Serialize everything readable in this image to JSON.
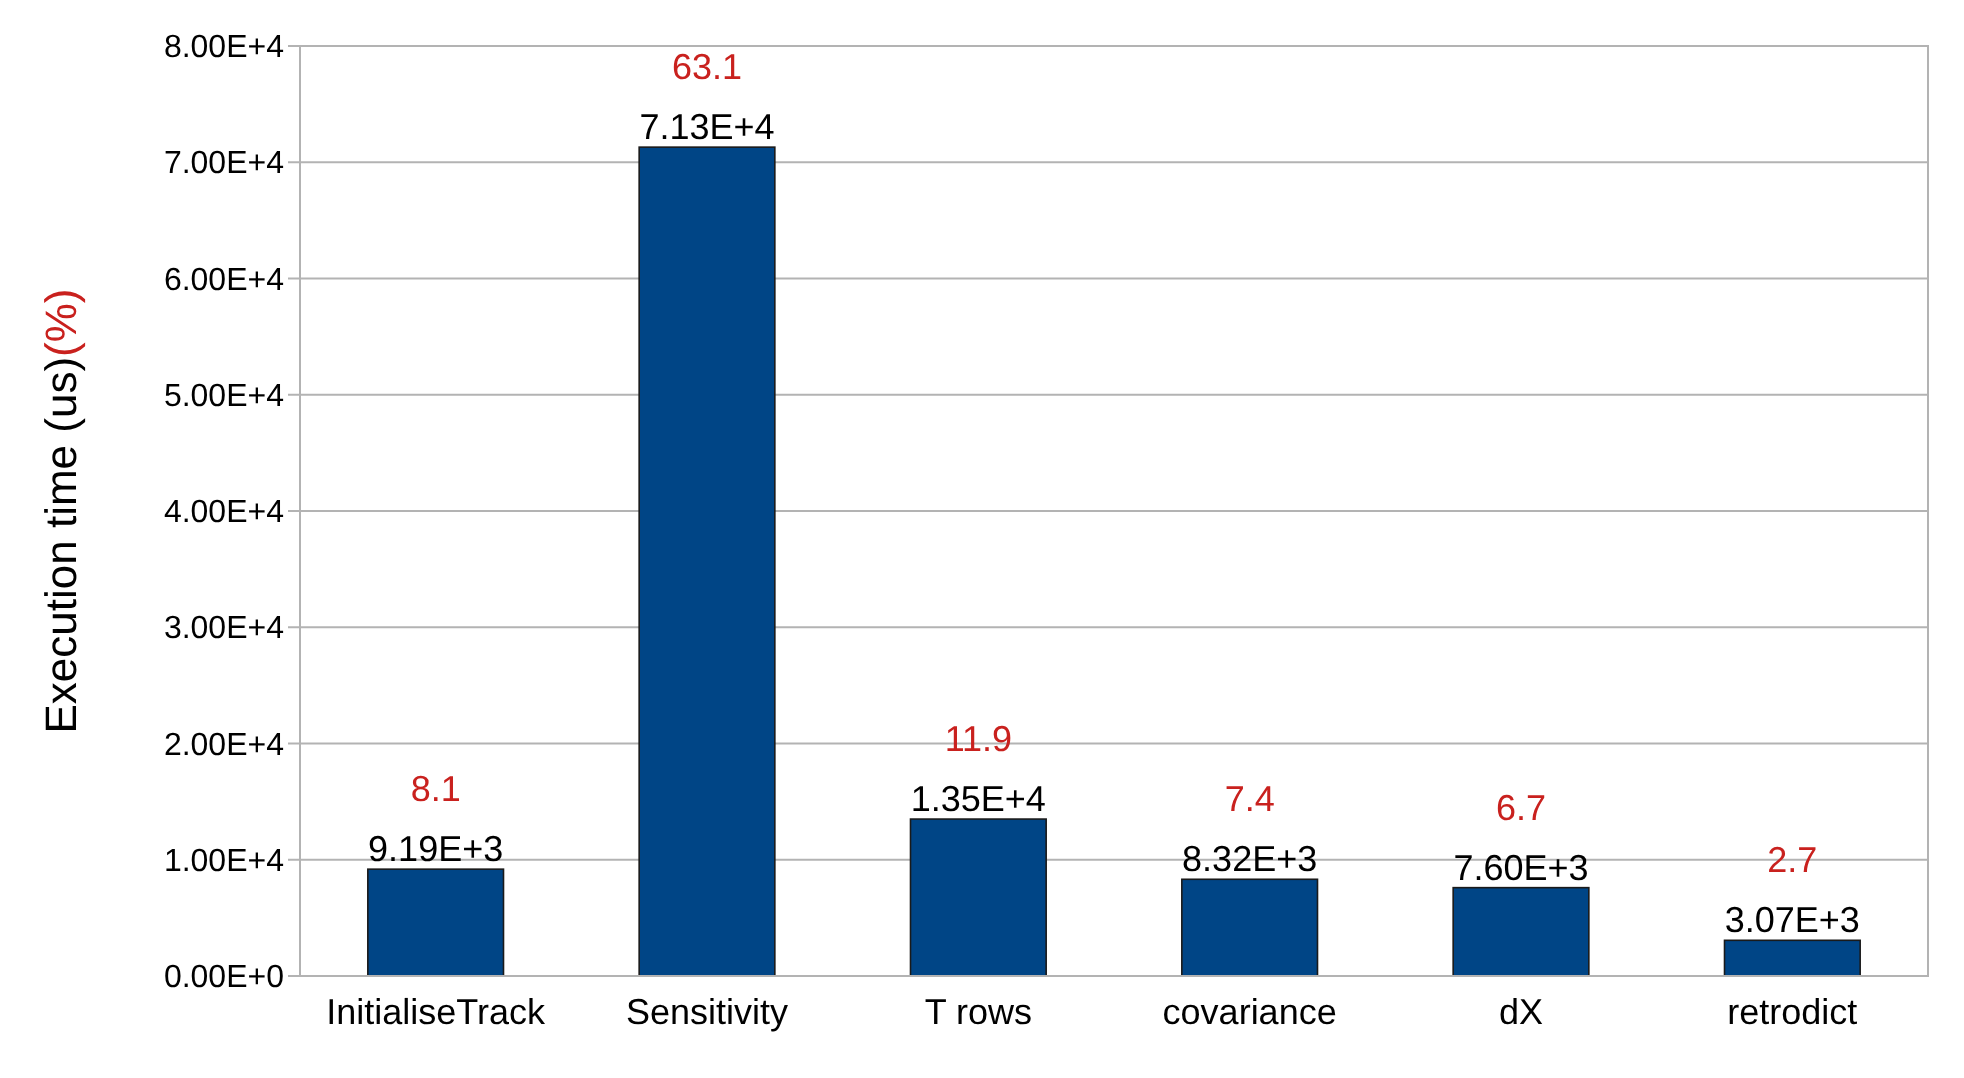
{
  "chart_data": {
    "type": "bar",
    "ylabel": "Execution time (us)",
    "categories": [
      "InitialiseTrack",
      "Sensitivity",
      "T rows",
      "covariance",
      "dX",
      "retrodict"
    ],
    "values": [
      9190,
      71300,
      13500,
      8320,
      7600,
      3070
    ],
    "value_labels": [
      "9.19E+3",
      "7.13E+4",
      "1.35E+4",
      "8.32E+3",
      "7.60E+3",
      "3.07E+3"
    ],
    "color": "#004586",
    "ylim": [
      0,
      80000
    ],
    "yticks": [
      {
        "value": 0,
        "label": "0.00E+0"
      },
      {
        "value": 10000,
        "label": "1.00E+4"
      },
      {
        "value": 20000,
        "label": "2.00E+4"
      },
      {
        "value": 30000,
        "label": "3.00E+4"
      },
      {
        "value": 40000,
        "label": "4.00E+4"
      },
      {
        "value": 50000,
        "label": "5.00E+4"
      },
      {
        "value": 60000,
        "label": "6.00E+4"
      },
      {
        "value": 70000,
        "label": "7.00E+4"
      },
      {
        "value": 80000,
        "label": "8.00E+4"
      }
    ],
    "grid": "y",
    "annotations": [
      "(%)",
      {
        "text": "8.1",
        "x": "InitialiseTrack",
        "y": 9190
      },
      {
        "text": "63.1",
        "x": "Sensitivity",
        "y": 71300
      },
      {
        "text": "11.9",
        "x": "T rows",
        "y": 13500
      },
      {
        "text": "7.4",
        "x": "covariance",
        "y": 8320
      },
      {
        "text": "6.7",
        "x": "dX",
        "y": 7600
      },
      {
        "text": "2.7",
        "x": "retrodict",
        "y": 3070
      }
    ]
  }
}
